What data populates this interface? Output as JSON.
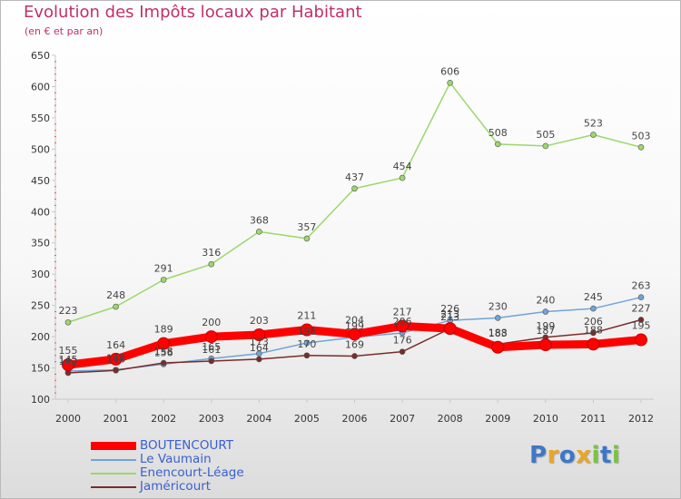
{
  "header": {
    "title": "Evolution des Impôts locaux par Habitant",
    "subtitle": "(en € et par an)"
  },
  "logo": {
    "letters": [
      "P",
      "r",
      "o",
      "x",
      "i",
      "t",
      "i"
    ],
    "text": "Proxiti"
  },
  "chart_data": {
    "type": "line",
    "title": "Evolution des Impôts locaux par Habitant",
    "subtitle": "(en € et par an)",
    "xlabel": "",
    "ylabel": "",
    "x": [
      "2000",
      "2001",
      "2002",
      "2003",
      "2004",
      "2005",
      "2006",
      "2007",
      "2008",
      "2009",
      "2010",
      "2011",
      "2012"
    ],
    "ylim": [
      100,
      650
    ],
    "yticks": [
      100,
      150,
      200,
      250,
      300,
      350,
      400,
      450,
      500,
      550,
      600,
      650
    ],
    "grid": false,
    "legend_position": "bottom-left",
    "series": [
      {
        "name": "BOUTENCOURT",
        "color": "#ff0000",
        "emphasis": true,
        "values": [
          155,
          164,
          189,
          200,
          203,
          211,
          204,
          217,
          213,
          183,
          187,
          188,
          195
        ],
        "labels": [
          "155",
          "164",
          "189",
          "200",
          "203",
          "211",
          "204",
          "217",
          "213",
          "183",
          "187",
          "188",
          "195"
        ]
      },
      {
        "name": "Le Vaumain",
        "color": "#6fa4d8",
        "emphasis": false,
        "values": [
          145,
          147,
          156,
          165,
          173,
          190,
          199,
          206,
          226,
          230,
          240,
          245,
          263
        ],
        "labels": [
          "145",
          "147",
          "156",
          "165",
          "173",
          "190",
          "199",
          "206",
          "226",
          "230",
          "240",
          "245",
          "263"
        ]
      },
      {
        "name": "Enencourt-Léage",
        "color": "#9bd86a",
        "emphasis": false,
        "values": [
          223,
          248,
          291,
          316,
          368,
          357,
          437,
          454,
          606,
          508,
          505,
          523,
          503
        ],
        "labels": [
          "223",
          "248",
          "291",
          "316",
          "368",
          "357",
          "437",
          "454",
          "606",
          "508",
          "505",
          "523",
          "503"
        ]
      },
      {
        "name": "Jaméricourt",
        "color": "#7b2b2b",
        "emphasis": false,
        "values": [
          142,
          146,
          158,
          161,
          164,
          170,
          169,
          176,
          213,
          188,
          199,
          206,
          227
        ],
        "labels": [
          "142",
          "146",
          "158",
          "161",
          "164",
          "170",
          "169",
          "176",
          "213",
          "188",
          "199",
          "206",
          "227"
        ]
      }
    ]
  }
}
